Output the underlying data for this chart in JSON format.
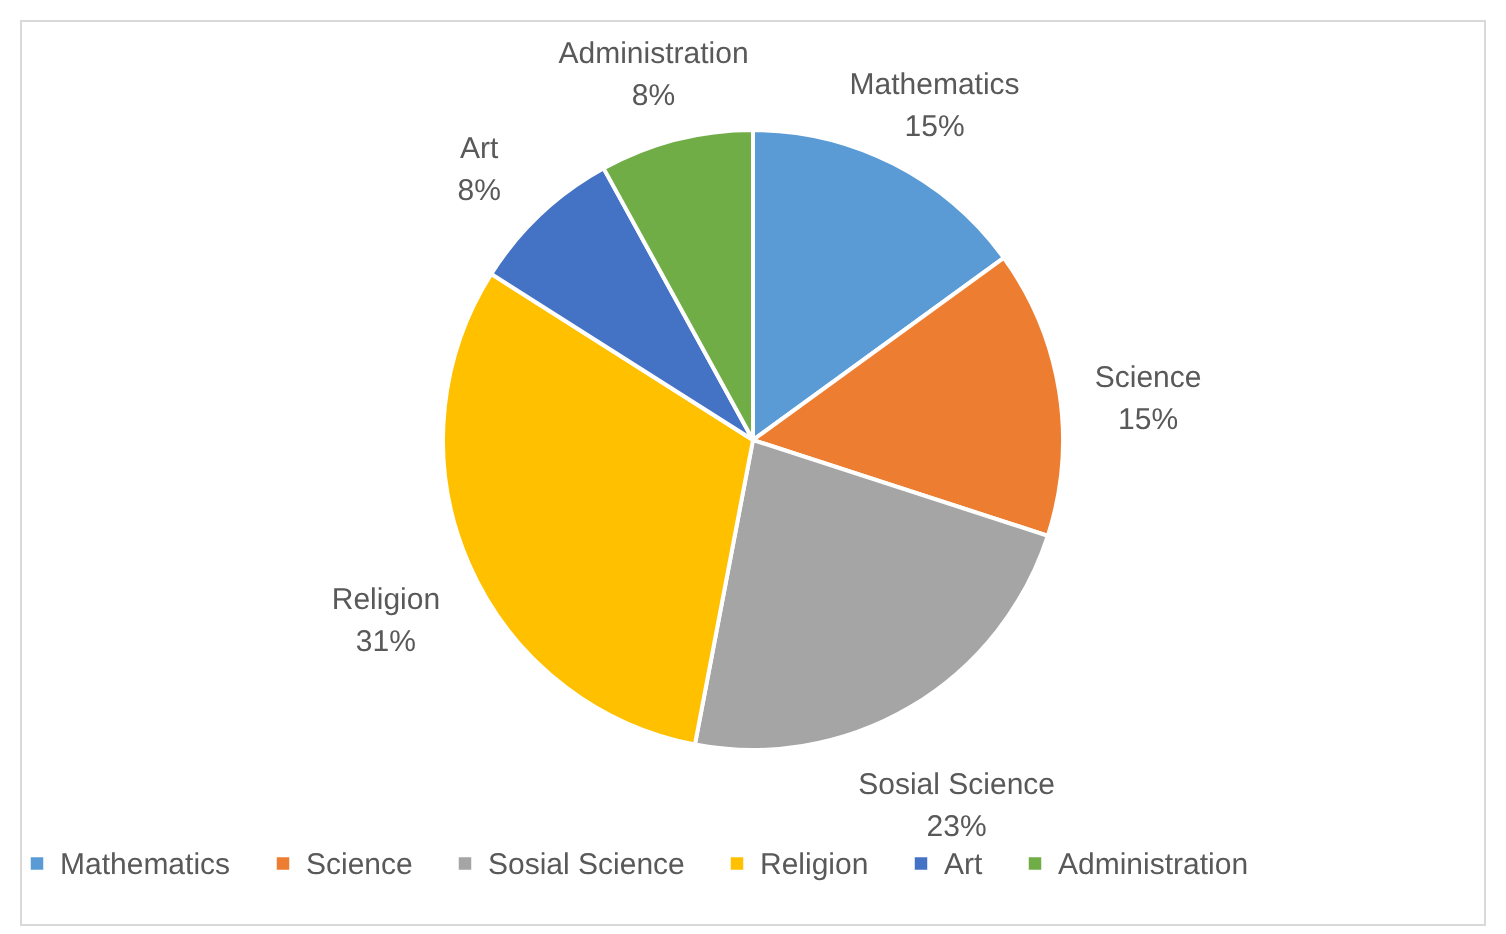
{
  "chart_data": {
    "type": "pie",
    "categories": [
      "Mathematics",
      "Science",
      "Sosial Science",
      "Religion",
      "Art",
      "Administration"
    ],
    "values": [
      15,
      15,
      23,
      31,
      8,
      8
    ],
    "value_labels": [
      "15%",
      "15%",
      "23%",
      "31%",
      "8%",
      "8%"
    ],
    "colors": [
      "#5b9bd5",
      "#ed7d31",
      "#a5a5a5",
      "#ffc000",
      "#4472c4",
      "#70ad47"
    ],
    "legend": "bottom"
  }
}
